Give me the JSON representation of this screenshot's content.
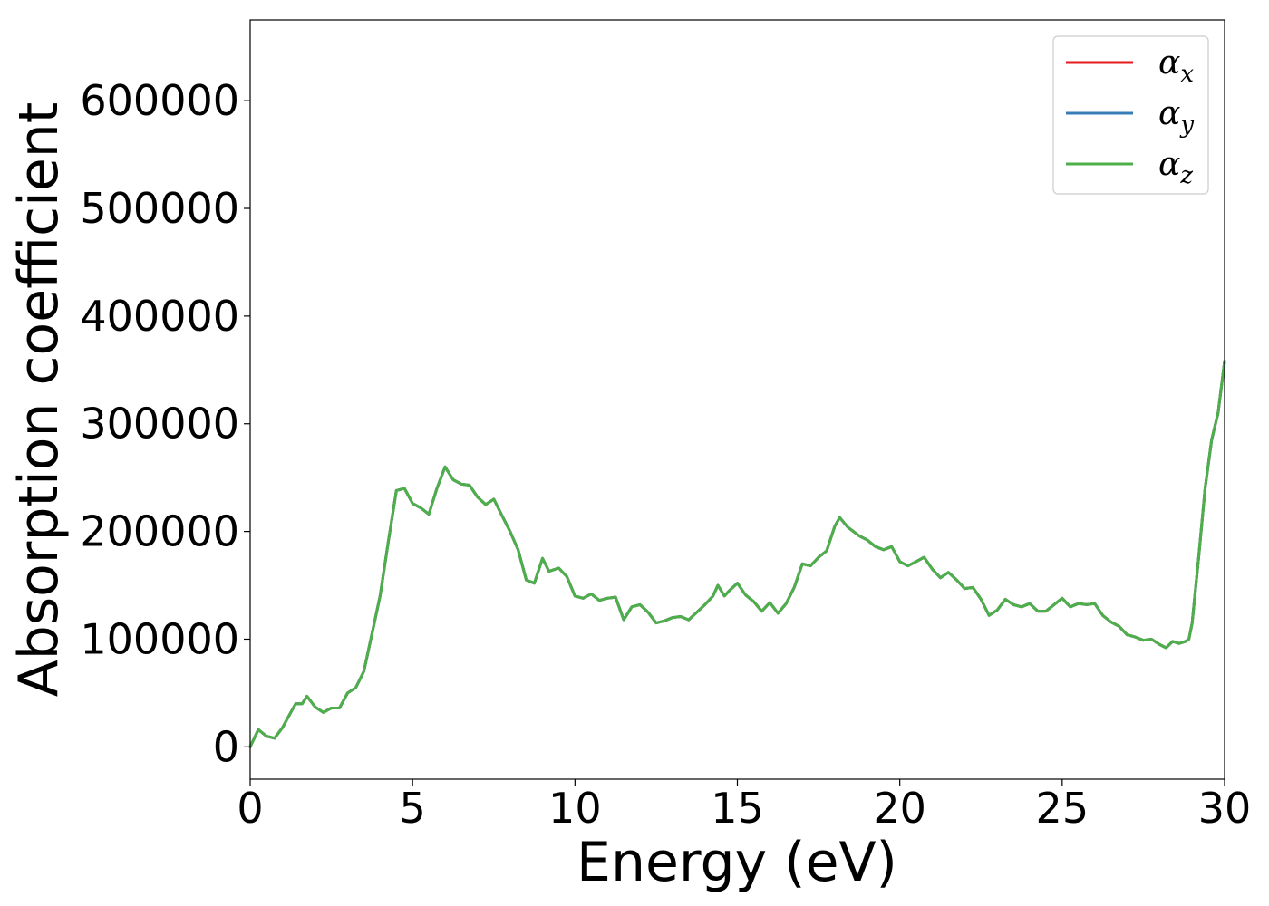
{
  "chart_data": {
    "type": "line",
    "xlabel": "Energy (eV)",
    "ylabel": "Absorption coefficient",
    "xlim": [
      0,
      30
    ],
    "ylim": [
      -30000,
      675000
    ],
    "xticks": [
      0,
      5,
      10,
      15,
      20,
      25,
      30
    ],
    "yticks": [
      0,
      100000,
      200000,
      300000,
      400000,
      500000,
      600000
    ],
    "grid": false,
    "legend_position": "top-right",
    "series": [
      {
        "name": "α",
        "subscript": "x",
        "color": "#e41a1c"
      },
      {
        "name": "α",
        "subscript": "y",
        "color": "#377eb8"
      },
      {
        "name": "α",
        "subscript": "z",
        "color": "#4daf4a"
      }
    ],
    "x": [
      0,
      0.25,
      0.5,
      0.75,
      1.0,
      1.25,
      1.4,
      1.6,
      1.75,
      2.0,
      2.25,
      2.5,
      2.75,
      3.0,
      3.25,
      3.5,
      3.75,
      4.0,
      4.25,
      4.5,
      4.75,
      5.0,
      5.25,
      5.5,
      5.75,
      6.0,
      6.25,
      6.5,
      6.75,
      7.0,
      7.25,
      7.5,
      7.75,
      8.0,
      8.25,
      8.5,
      8.75,
      9.0,
      9.2,
      9.5,
      9.75,
      10.0,
      10.25,
      10.5,
      10.75,
      11.0,
      11.25,
      11.5,
      11.75,
      12.0,
      12.25,
      12.5,
      12.75,
      13.0,
      13.25,
      13.5,
      13.75,
      14.0,
      14.25,
      14.4,
      14.6,
      14.75,
      15.0,
      15.25,
      15.5,
      15.75,
      16.0,
      16.25,
      16.5,
      16.75,
      17.0,
      17.25,
      17.5,
      17.75,
      18.0,
      18.15,
      18.4,
      18.75,
      19.0,
      19.25,
      19.5,
      19.75,
      20.0,
      20.25,
      20.5,
      20.75,
      21.0,
      21.25,
      21.5,
      21.75,
      22.0,
      22.25,
      22.5,
      22.75,
      23.0,
      23.25,
      23.5,
      23.75,
      24.0,
      24.25,
      24.5,
      24.75,
      25.0,
      25.25,
      25.5,
      25.75,
      26.0,
      26.25,
      26.5,
      26.75,
      27.0,
      27.25,
      27.5,
      27.75,
      28.0,
      28.2,
      28.4,
      28.6,
      28.8,
      28.9,
      29.0,
      29.2,
      29.4,
      29.6,
      29.8,
      30.0
    ],
    "values": [
      0,
      16000,
      10000,
      8000,
      18000,
      32000,
      40000,
      40000,
      47000,
      37000,
      32000,
      36000,
      36000,
      50000,
      55000,
      70000,
      105000,
      140000,
      190000,
      238000,
      240000,
      226000,
      222000,
      216000,
      240000,
      260000,
      248000,
      244000,
      243000,
      232000,
      225000,
      230000,
      215000,
      200000,
      183000,
      155000,
      152000,
      175000,
      163000,
      166000,
      158000,
      140000,
      138000,
      142000,
      136000,
      138000,
      139000,
      118000,
      130000,
      132000,
      125000,
      115000,
      117000,
      120000,
      121000,
      118000,
      125000,
      132000,
      140000,
      150000,
      140000,
      145000,
      152000,
      141000,
      135000,
      126000,
      134000,
      124000,
      133000,
      148000,
      170000,
      168000,
      176000,
      182000,
      205000,
      213000,
      204000,
      196000,
      192000,
      186000,
      183000,
      186000,
      172000,
      168000,
      172000,
      176000,
      165000,
      157000,
      162000,
      155000,
      147000,
      148000,
      137000,
      122000,
      127000,
      137000,
      132000,
      130000,
      133000,
      126000,
      126000,
      132000,
      138000,
      130000,
      133000,
      132000,
      133000,
      122000,
      116000,
      112000,
      104000,
      102000,
      99000,
      100000,
      95000,
      92000,
      98000,
      96000,
      98000,
      100000,
      115000,
      175000,
      240000,
      285000,
      310000,
      358000
    ]
  }
}
